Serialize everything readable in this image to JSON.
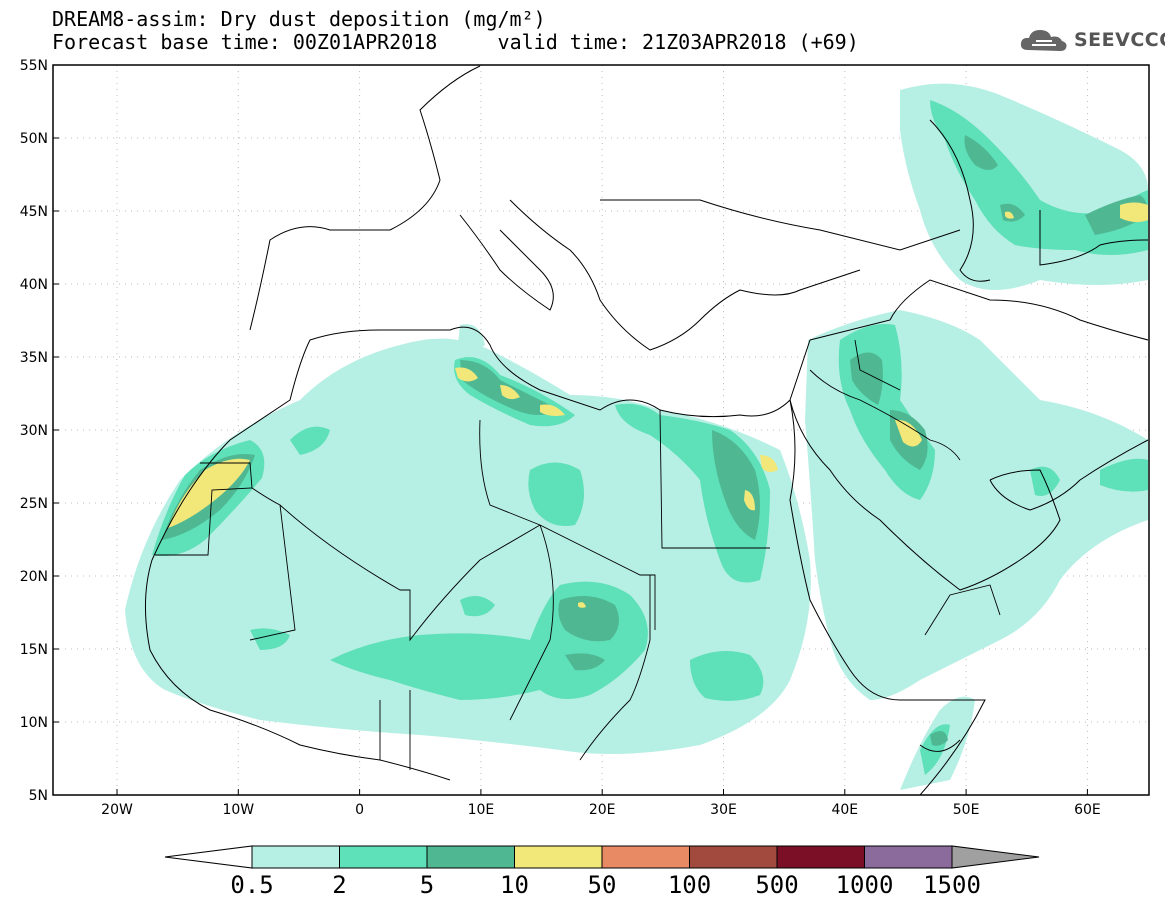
{
  "header": {
    "title": "DREAM8-assim: Dry dust deposition (mg/m²)",
    "base_time": "Forecast base time: 00Z01APR2018",
    "valid_time": "valid time: 21Z03APR2018 (+69)"
  },
  "logo": {
    "icon": "cloud-icon",
    "text": "SEEVCCC"
  },
  "axes": {
    "lat_labels": [
      "55N",
      "50N",
      "45N",
      "40N",
      "35N",
      "30N",
      "25N",
      "20N",
      "15N",
      "10N",
      "5N"
    ],
    "lon_labels": [
      "20W",
      "10W",
      "0",
      "10E",
      "20E",
      "30E",
      "40E",
      "50E",
      "60E"
    ]
  },
  "colorbar": {
    "labels": [
      "0.5",
      "2",
      "5",
      "10",
      "50",
      "100",
      "500",
      "1000",
      "1500"
    ],
    "colors": [
      "#b6efe4",
      "#5ee0b8",
      "#4fb892",
      "#f2e87a",
      "#e88a64",
      "#a34a3e",
      "#7a0f25",
      "#8b6a9c",
      "#a0a0a0"
    ]
  }
}
